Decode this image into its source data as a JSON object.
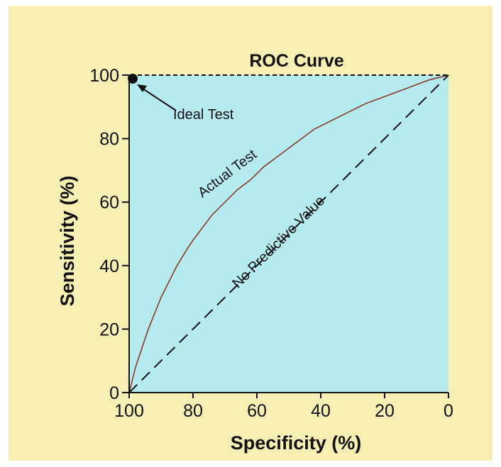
{
  "chart_data": {
    "type": "line",
    "title": "ROC Curve",
    "xlabel": "Specificity (%)",
    "ylabel": "Sensitivity (%)",
    "xlim": [
      100,
      0
    ],
    "ylim": [
      0,
      100
    ],
    "x_reversed": true,
    "x_ticks": [
      "100",
      "80",
      "60",
      "40",
      "20",
      "0"
    ],
    "y_ticks": [
      "0",
      "20",
      "40",
      "60",
      "80",
      "100"
    ],
    "grid": false,
    "legend": "none",
    "colors": {
      "page_background": "#f5efb4",
      "plot_background": "#b5ebee",
      "actual_curve": "#8b3a2a",
      "lines": "#111111"
    },
    "series": [
      {
        "name": "Actual Test",
        "style": "solid",
        "x": [
          100,
          99,
          98,
          96,
          94,
          92,
          90,
          88,
          85,
          82,
          80,
          77,
          74,
          70,
          66,
          62,
          58,
          54,
          50,
          46,
          42,
          38,
          34,
          30,
          26,
          22,
          18,
          14,
          10,
          6,
          2,
          0
        ],
        "y": [
          0,
          4,
          8,
          14,
          20,
          25,
          30,
          34,
          40,
          45,
          48,
          52,
          56,
          60,
          64,
          67,
          71,
          74,
          77,
          80,
          83,
          85,
          87,
          89,
          91,
          92.5,
          94,
          95.5,
          97,
          98.5,
          99.5,
          100
        ]
      },
      {
        "name": "No Predictive Value",
        "style": "dashed",
        "x": [
          100,
          0
        ],
        "y": [
          0,
          100
        ]
      },
      {
        "name": "Ideal Test",
        "style": "dashed",
        "x": [
          100,
          100,
          0
        ],
        "y": [
          0,
          100,
          100
        ]
      }
    ],
    "points": [
      {
        "label": "Ideal Test",
        "x": 100,
        "y": 100
      }
    ],
    "annotations": {
      "ideal_test": "Ideal Test",
      "actual_test": "Actual Test",
      "no_predictive_value": "No Predictive Value"
    }
  }
}
